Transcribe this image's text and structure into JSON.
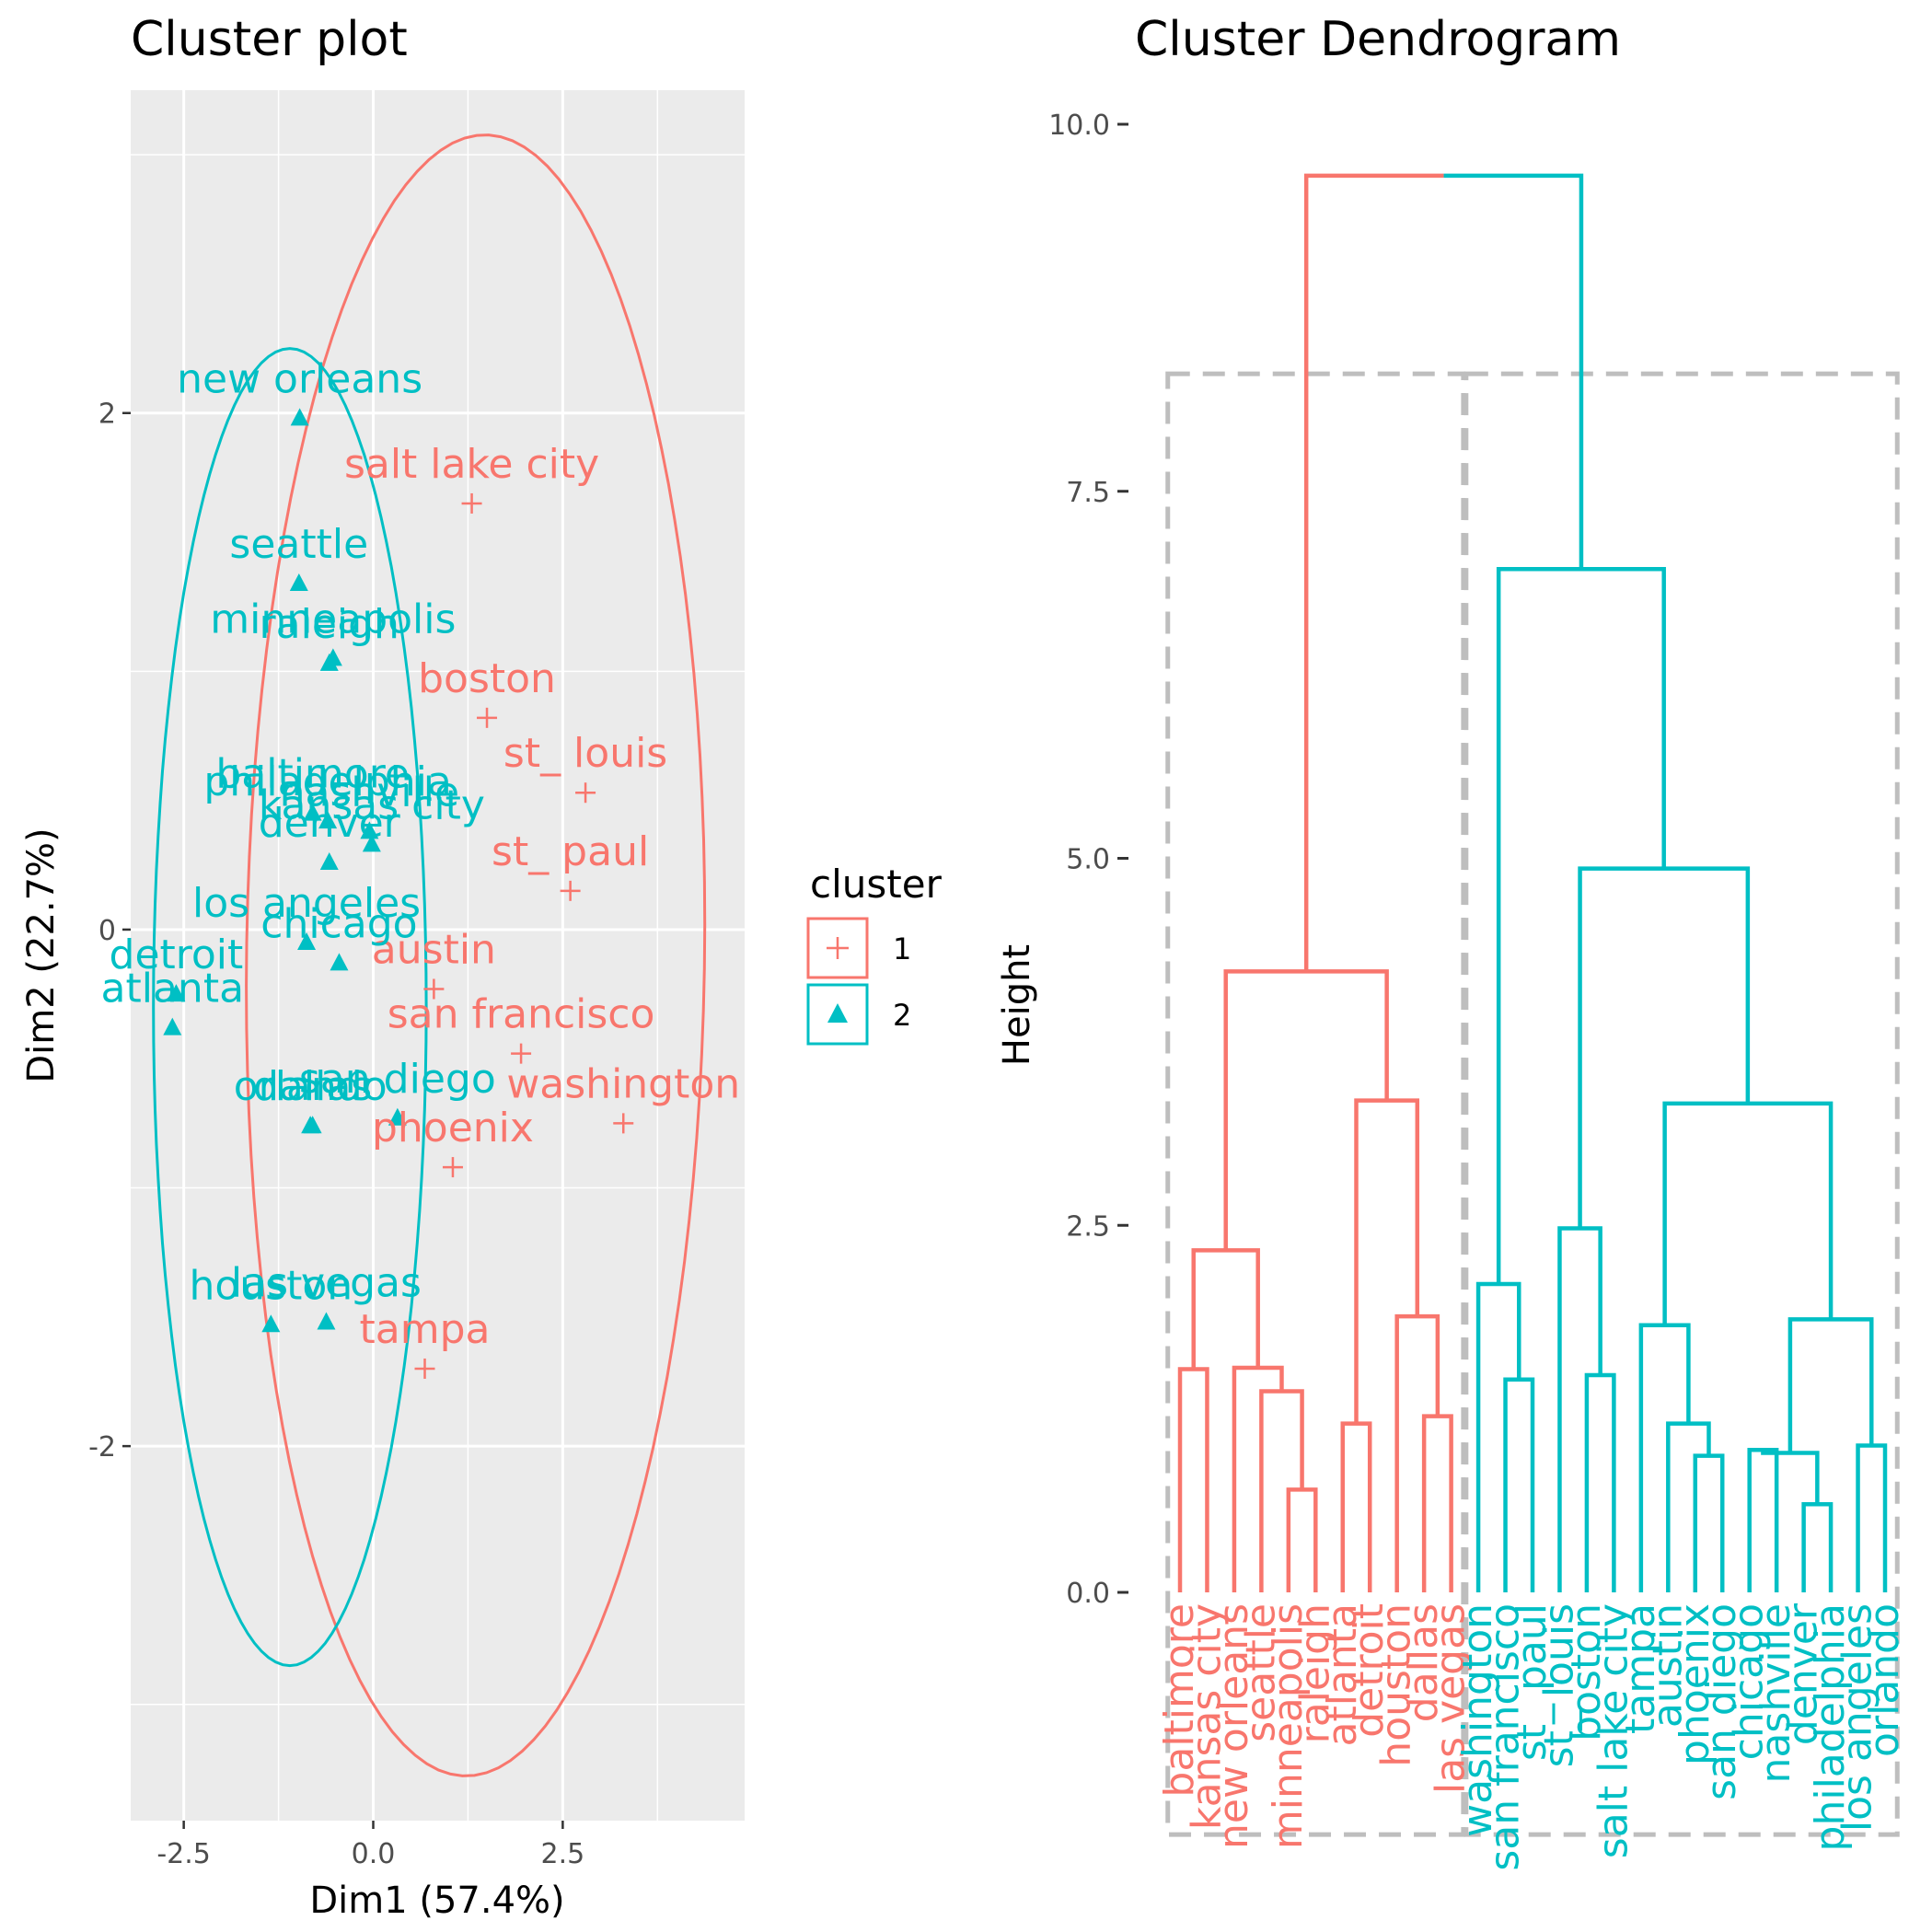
{
  "colors": {
    "cluster1": "#F8766D",
    "cluster2": "#00BFC4",
    "panel_bg": "#EBEBEB",
    "grid": "#FFFFFF",
    "box": "#BEBEBE"
  },
  "chart_data": [
    {
      "type": "scatter",
      "title": "Cluster plot",
      "xlabel": "Dim1 (57.4%)",
      "ylabel": "Dim2 (22.7%)",
      "xlim": [
        -3.2,
        4.9
      ],
      "ylim": [
        -3.45,
        3.25
      ],
      "x_ticks": [
        -2.5,
        0.0,
        2.5
      ],
      "x_tick_labels": [
        "-2.5",
        "0.0",
        "2.5"
      ],
      "y_ticks": [
        -2,
        0,
        2
      ],
      "y_tick_labels": [
        "-2",
        "0",
        "2"
      ],
      "grid": true,
      "legend": {
        "title": "cluster",
        "placement": "right",
        "entries": [
          {
            "label": "1",
            "symbol": "plus",
            "cluster": 1
          },
          {
            "label": "2",
            "symbol": "triangle",
            "cluster": 2
          }
        ]
      },
      "ellipses": [
        {
          "cluster": 1,
          "center": [
            1.35,
            -0.1
          ],
          "semi_x": 3.0,
          "semi_y": 3.2,
          "tilt": -0.35
        },
        {
          "cluster": 2,
          "center": [
            -1.1,
            -0.3
          ],
          "semi_x": 1.8,
          "semi_y": 2.55,
          "tilt": 0.0
        }
      ],
      "series": [
        {
          "name": "1",
          "symbol": "plus",
          "points": [
            {
              "label": "salt lake city",
              "x": 1.3,
              "y": 1.65
            },
            {
              "label": "boston",
              "x": 1.5,
              "y": 0.82
            },
            {
              "label": "st_ louis",
              "x": 2.8,
              "y": 0.53
            },
            {
              "label": "st_ paul",
              "x": 2.6,
              "y": 0.15
            },
            {
              "label": "austin",
              "x": 0.8,
              "y": -0.23
            },
            {
              "label": "san francisco",
              "x": 1.95,
              "y": -0.48
            },
            {
              "label": "washington",
              "x": 3.3,
              "y": -0.75
            },
            {
              "label": "phoenix",
              "x": 1.05,
              "y": -0.92
            },
            {
              "label": "tampa",
              "x": 0.68,
              "y": -1.7
            }
          ]
        },
        {
          "name": "2",
          "symbol": "triangle",
          "points": [
            {
              "label": "new orleans",
              "x": -0.97,
              "y": 1.98
            },
            {
              "label": "seattle",
              "x": -0.98,
              "y": 1.34
            },
            {
              "label": "minneapolis",
              "x": -0.53,
              "y": 1.05
            },
            {
              "label": "raleigh",
              "x": -0.58,
              "y": 1.03
            },
            {
              "label": "baltimore",
              "x": -0.8,
              "y": 0.45
            },
            {
              "label": "philadelphia",
              "x": -0.6,
              "y": 0.42
            },
            {
              "label": "nashville",
              "x": -0.05,
              "y": 0.38
            },
            {
              "label": "kansas city",
              "x": -0.02,
              "y": 0.33
            },
            {
              "label": "denver",
              "x": -0.58,
              "y": 0.26
            },
            {
              "label": "los angeles",
              "x": -0.88,
              "y": -0.05
            },
            {
              "label": "chicago",
              "x": -0.45,
              "y": -0.13
            },
            {
              "label": "detroit",
              "x": -2.6,
              "y": -0.25
            },
            {
              "label": "atlanta",
              "x": -2.65,
              "y": -0.38
            },
            {
              "label": "orlando",
              "x": -0.83,
              "y": -0.76
            },
            {
              "label": "dallas",
              "x": -0.8,
              "y": -0.76
            },
            {
              "label": "san diego",
              "x": 0.32,
              "y": -0.73
            },
            {
              "label": "houston",
              "x": -1.35,
              "y": -1.53
            },
            {
              "label": "las vegas",
              "x": -0.62,
              "y": -1.52
            }
          ]
        }
      ]
    },
    {
      "type": "dendrogram",
      "title": "Cluster Dendrogram",
      "ylabel": "Height",
      "ylim": [
        -1.65,
        10.3
      ],
      "y_ticks": [
        0.0,
        2.5,
        5.0,
        7.5,
        10.0
      ],
      "y_tick_labels": [
        "0.0",
        "2.5",
        "5.0",
        "7.5",
        "10.0"
      ],
      "leaves": [
        {
          "label": "baltimore",
          "cluster": 1
        },
        {
          "label": "kansas city",
          "cluster": 1
        },
        {
          "label": "new orleans",
          "cluster": 1
        },
        {
          "label": "seattle",
          "cluster": 1
        },
        {
          "label": "minneapolis",
          "cluster": 1
        },
        {
          "label": "raleigh",
          "cluster": 1
        },
        {
          "label": "atlanta",
          "cluster": 1
        },
        {
          "label": "detroit",
          "cluster": 1
        },
        {
          "label": "houston",
          "cluster": 1
        },
        {
          "label": "dallas",
          "cluster": 1
        },
        {
          "label": "las vegas",
          "cluster": 1
        },
        {
          "label": "washington",
          "cluster": 2
        },
        {
          "label": "san francisco",
          "cluster": 2
        },
        {
          "label": "st_ paul",
          "cluster": 2
        },
        {
          "label": "st_ louis",
          "cluster": 2
        },
        {
          "label": "boston",
          "cluster": 2
        },
        {
          "label": "salt lake city",
          "cluster": 2
        },
        {
          "label": "tampa",
          "cluster": 2
        },
        {
          "label": "austin",
          "cluster": 2
        },
        {
          "label": "phoenix",
          "cluster": 2
        },
        {
          "label": "san diego",
          "cluster": 2
        },
        {
          "label": "chicago",
          "cluster": 2
        },
        {
          "label": "nashville",
          "cluster": 2
        },
        {
          "label": "denver",
          "cluster": 2
        },
        {
          "label": "philadelphia",
          "cluster": 2
        },
        {
          "label": "los angeles",
          "cluster": 2
        },
        {
          "label": "orlando",
          "cluster": 2
        }
      ],
      "merges": [
        {
          "left": 0,
          "right": 1,
          "height": 1.52,
          "cluster": 1
        },
        {
          "left": 4,
          "right": 5,
          "height": 0.7,
          "cluster": 1
        },
        {
          "left": 3,
          "right": "m1",
          "height": 1.37,
          "cluster": 1
        },
        {
          "left": 2,
          "right": "m2",
          "height": 1.53,
          "cluster": 1
        },
        {
          "left": "m0",
          "right": "m3",
          "height": 2.33,
          "cluster": 1
        },
        {
          "left": 6,
          "right": 7,
          "height": 1.15,
          "cluster": 1
        },
        {
          "left": 9,
          "right": 10,
          "height": 1.2,
          "cluster": 1
        },
        {
          "left": 8,
          "right": "m6",
          "height": 1.88,
          "cluster": 1
        },
        {
          "left": "m5",
          "right": "m7",
          "height": 3.35,
          "cluster": 1
        },
        {
          "left": "m4",
          "right": "m8",
          "height": 4.23,
          "cluster": 1
        },
        {
          "left": 12,
          "right": 13,
          "height": 1.45,
          "cluster": 2
        },
        {
          "left": 11,
          "right": "m10",
          "height": 2.1,
          "cluster": 2
        },
        {
          "left": 15,
          "right": 16,
          "height": 1.48,
          "cluster": 2
        },
        {
          "left": 14,
          "right": "m12",
          "height": 2.48,
          "cluster": 2
        },
        {
          "left": 19,
          "right": 20,
          "height": 0.93,
          "cluster": 2
        },
        {
          "left": 18,
          "right": "m14",
          "height": 1.15,
          "cluster": 2
        },
        {
          "left": 17,
          "right": "m15",
          "height": 1.82,
          "cluster": 2
        },
        {
          "left": 21,
          "right": 22,
          "height": 0.97,
          "cluster": 2
        },
        {
          "left": 23,
          "right": 24,
          "height": 0.6,
          "cluster": 2
        },
        {
          "left": "m17",
          "right": "m18",
          "height": 0.95,
          "cluster": 2
        },
        {
          "left": 25,
          "right": 26,
          "height": 1.0,
          "cluster": 2
        },
        {
          "left": "m19",
          "right": "m20",
          "height": 1.86,
          "cluster": 2
        },
        {
          "left": "m16",
          "right": "m21",
          "height": 3.33,
          "cluster": 2
        },
        {
          "left": "m13",
          "right": "m22",
          "height": 4.93,
          "cluster": 2
        },
        {
          "left": "m11",
          "right": "m23",
          "height": 6.97,
          "cluster": 2
        },
        {
          "left": "m9",
          "right": "m24",
          "height": 9.65,
          "cluster": "split"
        }
      ],
      "cut_boxes": [
        {
          "from_leaf": 0,
          "to_leaf": 10,
          "top": 8.3,
          "bottom": -1.65
        },
        {
          "from_leaf": 11,
          "to_leaf": 26,
          "top": 8.3,
          "bottom": -1.65
        }
      ]
    }
  ]
}
